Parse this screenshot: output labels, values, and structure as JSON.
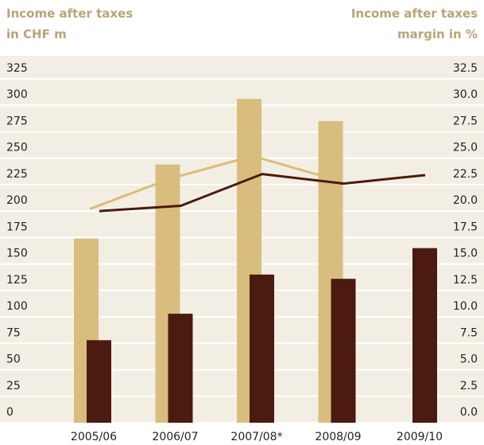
{
  "chart_data": {
    "type": "bar",
    "y_label": [
      "Income after taxes",
      "in CHF m"
    ],
    "y2_label": [
      "Income after taxes",
      "margin in %"
    ],
    "categories": [
      "2005/06",
      "2006/07",
      "2007/08*",
      "2008/09",
      "2009/10"
    ],
    "series": [
      {
        "color": "#d8bd7e",
        "values": [
          174,
          244,
          306,
          285,
          null
        ]
      },
      {
        "color": "#4b1a10",
        "values": [
          78,
          103,
          140,
          136,
          165
        ]
      },
      {
        "color": "#d8bd7e",
        "axis": "y2",
        "values": [
          20.2,
          23.1,
          25.2,
          23.0,
          null
        ]
      },
      {
        "color": "#4b1a10",
        "axis": "y2",
        "values": [
          20.0,
          20.5,
          23.5,
          22.6,
          23.4
        ]
      }
    ],
    "ylim": [
      0,
      325
    ],
    "yticks": [
      0,
      25,
      50,
      75,
      100,
      125,
      150,
      175,
      200,
      225,
      250,
      275,
      300,
      325
    ],
    "y2lim": [
      0,
      32.5
    ],
    "y2ticks": [
      {
        "value": 0,
        "label": "0.0"
      },
      2.5,
      {
        "value": 5,
        "label": "5.0"
      },
      7.5,
      {
        "value": 10,
        "label": "10.0"
      },
      12.5,
      {
        "value": 15,
        "label": "15.0"
      },
      17.5,
      {
        "value": 20,
        "label": "20.0"
      },
      22.5,
      {
        "value": 25,
        "label": "25.0"
      },
      27.5,
      {
        "value": 30,
        "label": "30.0"
      },
      32.5
    ],
    "grid": true
  }
}
